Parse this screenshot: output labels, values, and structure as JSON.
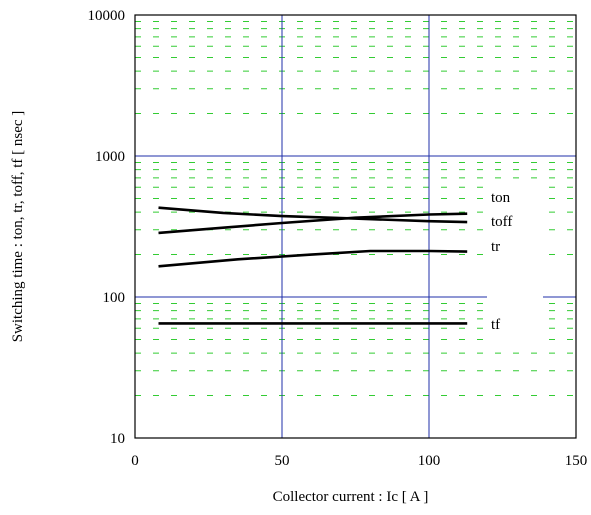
{
  "chart_data": {
    "type": "line",
    "title": "",
    "xlabel": "Collector current  :  Ic  [ A ]",
    "ylabel": "Switching time  :  ton, tr, toff, tf  [ nsec ]",
    "xlim": [
      0,
      150
    ],
    "ylim": [
      10,
      10000
    ],
    "yscale": "log",
    "xticks": [
      0,
      50,
      100,
      150
    ],
    "yticks": [
      10,
      100,
      1000,
      10000
    ],
    "xtick_labels": [
      "0",
      "50",
      "100",
      "150"
    ],
    "ytick_labels": [
      "10",
      "100",
      "1000",
      "10000"
    ],
    "grid": true,
    "major_grid_color": "#1f2fa8",
    "minor_grid_color": "#33cc33",
    "line_color": "#000000",
    "series": [
      {
        "name": "ton",
        "x": [
          8,
          30,
          50,
          75,
          100,
          113
        ],
        "y": [
          430,
          395,
          375,
          360,
          345,
          340
        ]
      },
      {
        "name": "toff",
        "x": [
          8,
          30,
          50,
          75,
          100,
          113
        ],
        "y": [
          285,
          310,
          335,
          365,
          385,
          390
        ]
      },
      {
        "name": "tr",
        "x": [
          8,
          35,
          60,
          80,
          100,
          113
        ],
        "y": [
          165,
          185,
          200,
          212,
          212,
          210
        ]
      },
      {
        "name": "tf",
        "x": [
          8,
          50,
          100,
          113
        ],
        "y": [
          65,
          65,
          65,
          65
        ]
      }
    ]
  }
}
